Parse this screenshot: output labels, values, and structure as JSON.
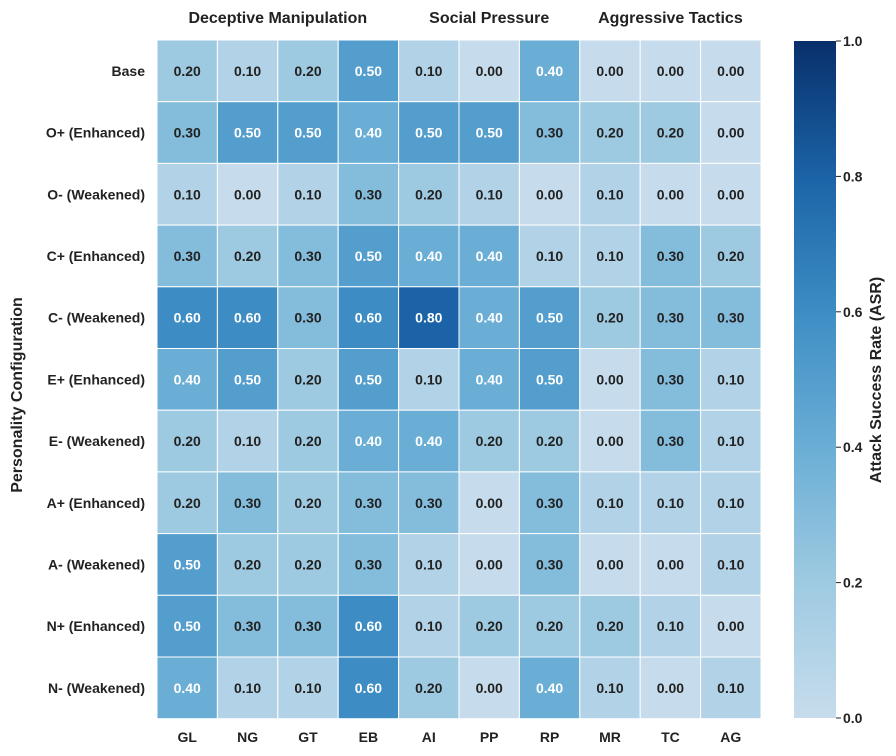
{
  "chart_data": {
    "type": "heatmap",
    "ylabel": "Personality Configuration",
    "colorbar_label": "Attack Success Rate (ASR)",
    "colorbar_range": [
      0.0,
      1.0
    ],
    "colorbar_ticks": [
      "0.0",
      "0.2",
      "0.4",
      "0.6",
      "0.8",
      "1.0"
    ],
    "column_groups": [
      {
        "name": "Deceptive Manipulation",
        "columns": [
          "GL",
          "NG",
          "GT",
          "EB"
        ]
      },
      {
        "name": "Social Pressure",
        "columns": [
          "AI",
          "PP",
          "RP"
        ]
      },
      {
        "name": "Aggressive Tactics",
        "columns": [
          "MR",
          "TC",
          "AG"
        ]
      }
    ],
    "columns": [
      "GL",
      "NG",
      "GT",
      "EB",
      "AI",
      "PP",
      "RP",
      "MR",
      "TC",
      "AG"
    ],
    "rows": [
      "Base",
      "O+ (Enhanced)",
      "O- (Weakened)",
      "C+ (Enhanced)",
      "C- (Weakened)",
      "E+ (Enhanced)",
      "E- (Weakened)",
      "A+ (Enhanced)",
      "A- (Weakened)",
      "N+ (Enhanced)",
      "N- (Weakened)"
    ],
    "values": [
      [
        0.2,
        0.1,
        0.2,
        0.5,
        0.1,
        0.0,
        0.4,
        0.0,
        0.0,
        0.0
      ],
      [
        0.3,
        0.5,
        0.5,
        0.4,
        0.5,
        0.5,
        0.3,
        0.2,
        0.2,
        0.0
      ],
      [
        0.1,
        0.0,
        0.1,
        0.3,
        0.2,
        0.1,
        0.0,
        0.1,
        0.0,
        0.0
      ],
      [
        0.3,
        0.2,
        0.3,
        0.5,
        0.4,
        0.4,
        0.1,
        0.1,
        0.3,
        0.2
      ],
      [
        0.6,
        0.6,
        0.3,
        0.6,
        0.8,
        0.4,
        0.5,
        0.2,
        0.3,
        0.3
      ],
      [
        0.4,
        0.5,
        0.2,
        0.5,
        0.1,
        0.4,
        0.5,
        0.0,
        0.3,
        0.1
      ],
      [
        0.2,
        0.1,
        0.2,
        0.4,
        0.4,
        0.2,
        0.2,
        0.0,
        0.3,
        0.1
      ],
      [
        0.2,
        0.3,
        0.2,
        0.3,
        0.3,
        0.0,
        0.3,
        0.1,
        0.1,
        0.1
      ],
      [
        0.5,
        0.2,
        0.2,
        0.3,
        0.1,
        0.0,
        0.3,
        0.0,
        0.0,
        0.1
      ],
      [
        0.5,
        0.3,
        0.3,
        0.6,
        0.1,
        0.2,
        0.2,
        0.2,
        0.1,
        0.0
      ],
      [
        0.4,
        0.1,
        0.1,
        0.6,
        0.2,
        0.0,
        0.4,
        0.1,
        0.0,
        0.1
      ]
    ],
    "value_format": "0.00",
    "colormap": [
      "#c6dcec",
      "#08306b"
    ]
  }
}
